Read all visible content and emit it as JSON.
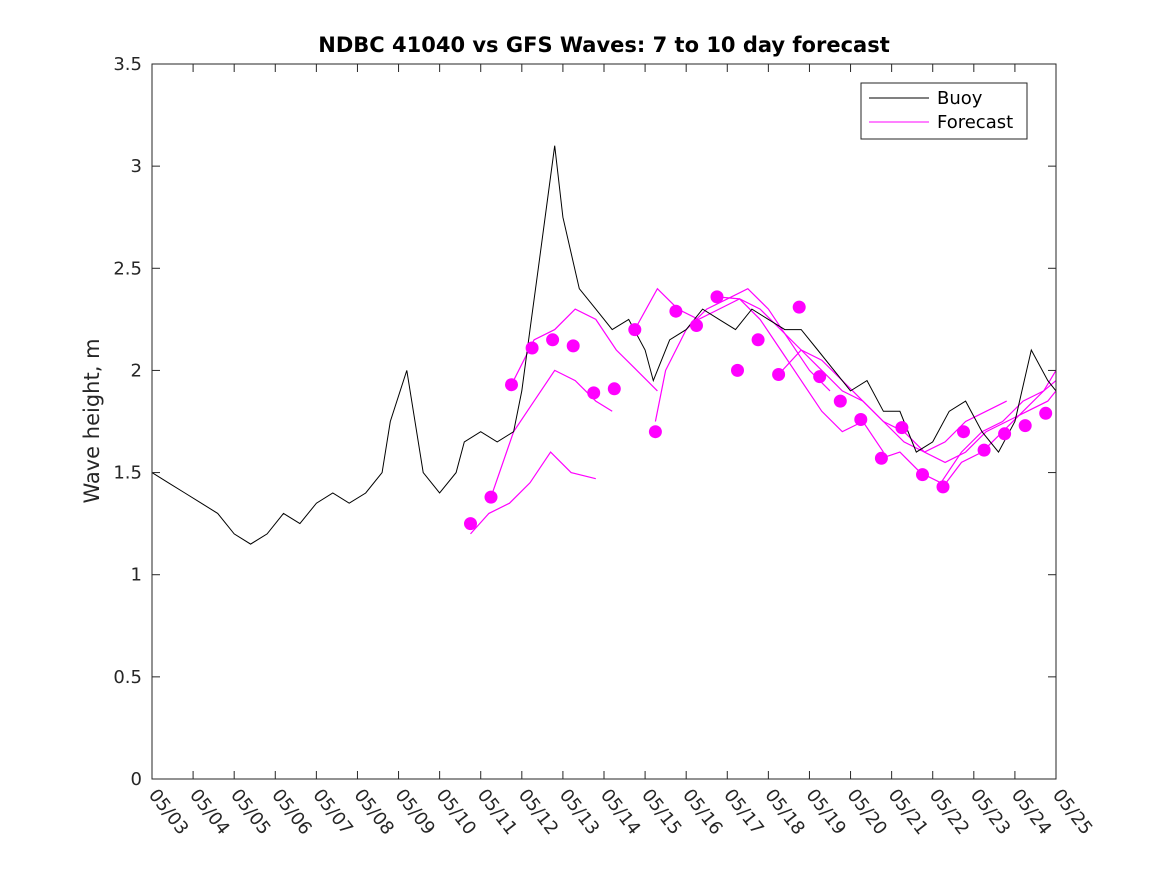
{
  "chart_data": {
    "type": "line",
    "title": "NDBC 41040 vs GFS Waves: 7 to 10 day forecast",
    "xlabel": "",
    "ylabel": "Wave height, m",
    "xlim": [
      0,
      22
    ],
    "ylim": [
      0,
      3.5
    ],
    "x_tick_labels": [
      "05/03",
      "05/04",
      "05/05",
      "05/06",
      "05/07",
      "05/08",
      "05/09",
      "05/10",
      "05/11",
      "05/12",
      "05/13",
      "05/14",
      "05/15",
      "05/16",
      "05/17",
      "05/18",
      "05/19",
      "05/20",
      "05/21",
      "05/22",
      "05/23",
      "05/24",
      "05/25"
    ],
    "y_tick_labels": [
      "0",
      "0.5",
      "1",
      "1.5",
      "2",
      "2.5",
      "3",
      "3.5"
    ],
    "y_ticks": [
      0,
      0.5,
      1,
      1.5,
      2,
      2.5,
      3,
      3.5
    ],
    "grid": false,
    "legend": {
      "position": "top-right",
      "entries": [
        "Buoy",
        "Forecast"
      ]
    },
    "colors": {
      "buoy": "#000000",
      "forecast": "#ff00ff"
    },
    "series": [
      {
        "name": "Buoy",
        "style": "line",
        "x": [
          0,
          0.4,
          0.8,
          1.2,
          1.6,
          2.0,
          2.4,
          2.8,
          3.2,
          3.6,
          4.0,
          4.4,
          4.8,
          5.2,
          5.6,
          5.8,
          6.2,
          6.6,
          7.0,
          7.4,
          7.6,
          8.0,
          8.4,
          8.8,
          9.0,
          9.2,
          9.4,
          9.6,
          9.8,
          10.0,
          10.4,
          10.8,
          11.2,
          11.6,
          12.0,
          12.2,
          12.6,
          13.0,
          13.4,
          13.8,
          14.2,
          14.6,
          15.0,
          15.4,
          15.8,
          16.2,
          16.6,
          17.0,
          17.4,
          17.8,
          18.2,
          18.6,
          19.0,
          19.4,
          19.8,
          20.2,
          20.6,
          21.0,
          21.4,
          21.8,
          22.0
        ],
        "y": [
          1.5,
          1.45,
          1.4,
          1.35,
          1.3,
          1.2,
          1.15,
          1.2,
          1.3,
          1.25,
          1.35,
          1.4,
          1.35,
          1.4,
          1.5,
          1.75,
          2.0,
          1.5,
          1.4,
          1.5,
          1.65,
          1.7,
          1.65,
          1.7,
          1.9,
          2.2,
          2.5,
          2.8,
          3.1,
          2.75,
          2.4,
          2.3,
          2.2,
          2.25,
          2.1,
          1.95,
          2.15,
          2.2,
          2.3,
          2.25,
          2.2,
          2.3,
          2.25,
          2.2,
          2.2,
          2.1,
          2.0,
          1.9,
          1.95,
          1.8,
          1.8,
          1.6,
          1.65,
          1.8,
          1.85,
          1.7,
          1.6,
          1.75,
          2.1,
          1.95,
          1.9
        ]
      },
      {
        "name": "Forecast",
        "style": "markers",
        "x": [
          7.75,
          8.25,
          8.75,
          9.25,
          9.75,
          10.25,
          10.75,
          11.25,
          11.75,
          12.25,
          12.75,
          13.25,
          13.75,
          14.25,
          14.75,
          15.25,
          15.75,
          16.25,
          16.75,
          17.25,
          17.75,
          18.25,
          18.75,
          19.25,
          19.75,
          20.25,
          20.75,
          21.25,
          21.75
        ],
        "y": [
          1.25,
          1.38,
          1.93,
          2.11,
          2.15,
          2.12,
          1.89,
          1.91,
          2.2,
          1.7,
          2.29,
          2.22,
          2.36,
          2.0,
          2.15,
          1.98,
          2.31,
          1.97,
          1.85,
          1.76,
          1.57,
          1.72,
          1.49,
          1.43,
          1.7,
          1.61,
          1.69,
          1.73,
          1.79
        ]
      },
      {
        "name": "",
        "style": "line",
        "x": [
          7.75,
          8.2,
          8.7,
          9.2,
          9.7,
          10.2,
          10.8
        ],
        "y": [
          1.2,
          1.3,
          1.35,
          1.45,
          1.6,
          1.5,
          1.47
        ]
      },
      {
        "name": "",
        "style": "line",
        "x": [
          8.25,
          8.8,
          9.3,
          9.8,
          10.3,
          10.8,
          11.2
        ],
        "y": [
          1.38,
          1.7,
          1.85,
          2.0,
          1.95,
          1.85,
          1.8
        ]
      },
      {
        "name": "",
        "style": "line",
        "x": [
          8.75,
          9.3,
          9.8,
          10.3,
          10.8,
          11.3,
          11.8,
          12.3
        ],
        "y": [
          1.93,
          2.15,
          2.2,
          2.3,
          2.25,
          2.1,
          2.0,
          1.9
        ]
      },
      {
        "name": "",
        "style": "line",
        "x": [
          12.25,
          12.5,
          13.0,
          13.5,
          14.0,
          14.5,
          15.0,
          15.5,
          16.0,
          16.5
        ],
        "y": [
          1.75,
          2.0,
          2.2,
          2.3,
          2.35,
          2.4,
          2.3,
          2.15,
          2.0,
          1.9
        ]
      },
      {
        "name": "",
        "style": "line",
        "x": [
          11.75,
          12.3,
          12.8,
          13.3,
          13.8,
          14.3,
          14.8,
          15.3,
          15.8,
          16.3,
          16.8,
          17.3,
          17.8
        ],
        "y": [
          2.2,
          2.4,
          2.3,
          2.25,
          2.3,
          2.35,
          2.25,
          2.1,
          1.95,
          1.8,
          1.7,
          1.75,
          1.6
        ]
      },
      {
        "name": "",
        "style": "line",
        "x": [
          13.75,
          14.3,
          14.8,
          15.3,
          15.8,
          16.3,
          16.8,
          17.3,
          17.8,
          18.3,
          18.8,
          19.3,
          19.8,
          20.3,
          20.8
        ],
        "y": [
          2.36,
          2.35,
          2.3,
          2.2,
          2.1,
          2.0,
          1.9,
          1.85,
          1.75,
          1.65,
          1.6,
          1.65,
          1.75,
          1.8,
          1.85
        ]
      },
      {
        "name": "",
        "style": "line",
        "x": [
          15.25,
          15.8,
          16.3,
          16.8,
          17.3,
          17.8,
          18.3,
          18.8,
          19.3,
          19.8,
          20.3,
          20.8,
          21.3,
          21.8,
          22.0
        ],
        "y": [
          1.98,
          2.1,
          2.05,
          1.95,
          1.85,
          1.75,
          1.7,
          1.6,
          1.55,
          1.6,
          1.7,
          1.75,
          1.8,
          1.85,
          1.9
        ]
      },
      {
        "name": "",
        "style": "line",
        "x": [
          17.75,
          18.2,
          18.7,
          19.2,
          19.7,
          20.2,
          20.7,
          21.2,
          21.7,
          22.0
        ],
        "y": [
          1.57,
          1.6,
          1.5,
          1.45,
          1.6,
          1.7,
          1.75,
          1.85,
          1.9,
          1.95
        ]
      },
      {
        "name": "",
        "style": "line",
        "x": [
          19.25,
          19.7,
          20.2,
          20.7,
          21.2,
          21.7,
          22.0
        ],
        "y": [
          1.43,
          1.55,
          1.6,
          1.7,
          1.8,
          1.9,
          2.0
        ]
      }
    ]
  }
}
